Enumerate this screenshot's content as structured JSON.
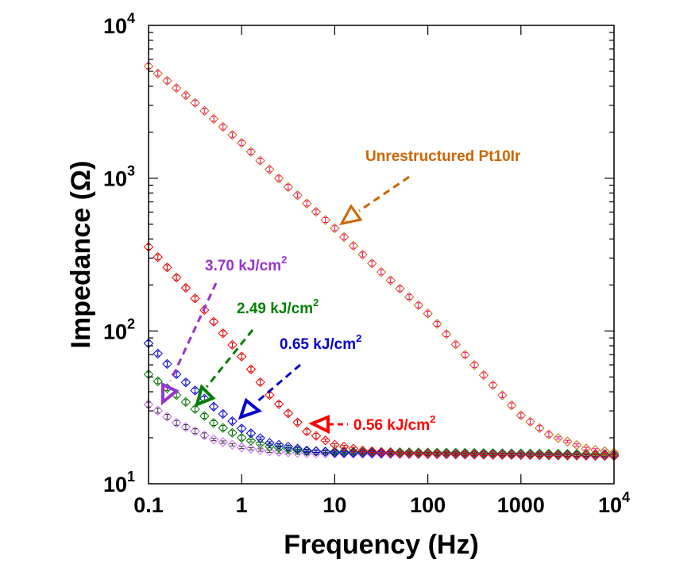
{
  "chart_data": {
    "type": "scatter",
    "title": "",
    "xlabel": "Frequency (Hz)",
    "ylabel": "Impedance (Ω)",
    "xscale": "log",
    "yscale": "log",
    "xlim": [
      0.1,
      10000
    ],
    "ylim": [
      10,
      10000
    ],
    "grid": false,
    "x_ticks": [
      {
        "value": 0.1,
        "label": "0.1"
      },
      {
        "value": 1,
        "label": "1"
      },
      {
        "value": 10,
        "label": "10"
      },
      {
        "value": 100,
        "label": "100"
      },
      {
        "value": 1000,
        "label": "1000"
      },
      {
        "value": 10000,
        "label": "10",
        "exp": "4"
      }
    ],
    "y_ticks": [
      {
        "value": 10,
        "label": "10",
        "exp": "1"
      },
      {
        "value": 100,
        "label": "10",
        "exp": "2"
      },
      {
        "value": 1000,
        "label": "10",
        "exp": "3"
      },
      {
        "value": 10000,
        "label": "10",
        "exp": "4"
      }
    ],
    "points_per_decade": 10,
    "series": [
      {
        "name": "Unrestructured Pt10Ir",
        "color": "#CC6600",
        "errorbar_color": "#FF0080",
        "anchors": {
          "f": [
            0.1,
            0.3,
            1,
            3,
            10,
            30,
            100,
            300,
            1000,
            2000,
            5000,
            10000
          ],
          "z": [
            5400,
            3200,
            1700,
            900,
            470,
            250,
            130,
            62,
            28,
            21,
            17,
            16
          ]
        }
      },
      {
        "name": "0.56 kJ/cm2",
        "color": "#FF0000",
        "errorbar_color": "#CC0000",
        "anchors": {
          "f": [
            0.1,
            0.3,
            1,
            2,
            5,
            10,
            20,
            50,
            10000
          ],
          "z": [
            355,
            170,
            68,
            38,
            22,
            18,
            16.5,
            15.8,
            15.2
          ]
        }
      },
      {
        "name": "0.65 kJ/cm2",
        "color": "#0000CC",
        "errorbar_color": "#0000CC",
        "anchors": {
          "f": [
            0.1,
            0.2,
            0.5,
            1,
            2,
            5,
            10,
            10000
          ],
          "z": [
            83,
            52,
            32,
            23,
            18.5,
            16.5,
            16,
            15.3
          ]
        }
      },
      {
        "name": "2.49 kJ/cm2",
        "color": "#008000",
        "errorbar_color": "#006400",
        "anchors": {
          "f": [
            0.1,
            0.2,
            0.5,
            1,
            2,
            5,
            10000
          ],
          "z": [
            52,
            38,
            25,
            20,
            17.5,
            16.3,
            15.6
          ]
        }
      },
      {
        "name": "3.70 kJ/cm2",
        "color": "#CC66FF",
        "errorbar_color": "#333333",
        "anchors": {
          "f": [
            0.1,
            0.2,
            0.5,
            1,
            2,
            5,
            10000
          ],
          "z": [
            33,
            25,
            19.5,
            17.3,
            16.3,
            15.8,
            15.2
          ]
        }
      }
    ],
    "annotations": [
      {
        "text": "Unrestructured Pt10Ir",
        "sup": "",
        "color": "#CC6600",
        "points_to_series": "Unrestructured Pt10Ir"
      },
      {
        "text": "3.70 kJ/cm",
        "sup": "2",
        "color": "#9933CC",
        "points_to_series": "3.70 kJ/cm2"
      },
      {
        "text": "2.49 kJ/cm",
        "sup": "2",
        "color": "#008000",
        "points_to_series": "2.49 kJ/cm2"
      },
      {
        "text": "0.65 kJ/cm",
        "sup": "2",
        "color": "#0000CC",
        "points_to_series": "0.65 kJ/cm2"
      },
      {
        "text": "0.56 kJ/cm",
        "sup": "2",
        "color": "#FF0000",
        "points_to_series": "0.56 kJ/cm2"
      }
    ]
  }
}
